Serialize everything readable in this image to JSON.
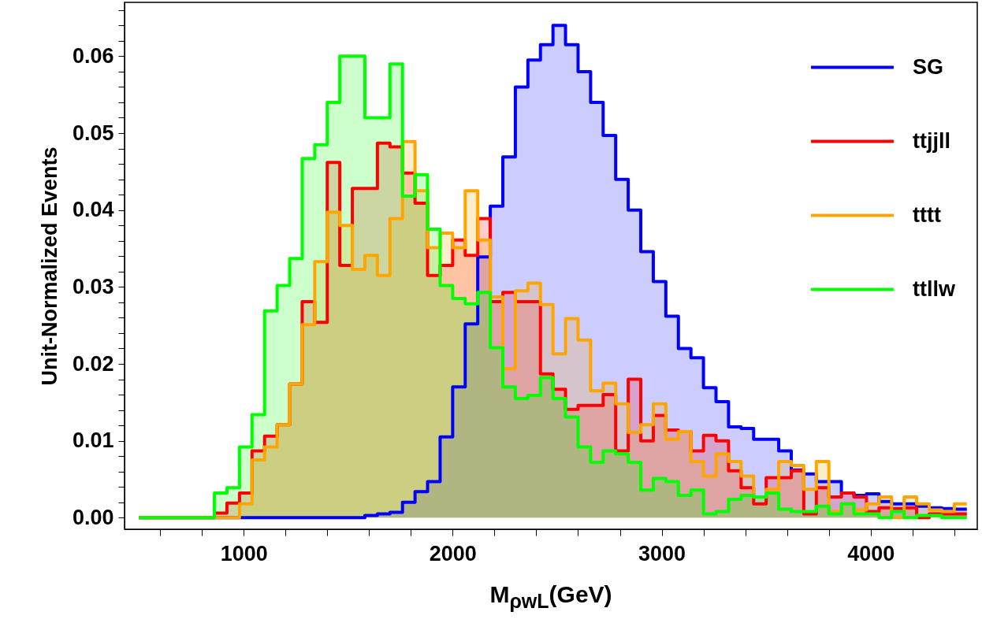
{
  "chart_data": {
    "type": "histogram",
    "xlabel": "M$_{ρwL}$(GeV)",
    "ylabel": "Unit-Normalized Events",
    "bins": [
      500,
      560,
      620,
      680,
      740,
      800,
      860,
      920,
      980,
      1040,
      1100,
      1160,
      1220,
      1280,
      1340,
      1400,
      1460,
      1520,
      1580,
      1640,
      1700,
      1760,
      1820,
      1880,
      1940,
      2000,
      2060,
      2120,
      2180,
      2240,
      2300,
      2360,
      2420,
      2480,
      2540,
      2600,
      2660,
      2720,
      2780,
      2840,
      2900,
      2960,
      3020,
      3080,
      3140,
      3200,
      3260,
      3320,
      3380,
      3440,
      3500,
      3560,
      3620,
      3680,
      3740,
      3800,
      3860,
      3920,
      3980,
      4040,
      4100,
      4160,
      4220,
      4280,
      4340,
      4400,
      4460
    ],
    "series": [
      {
        "name": "SG",
        "color": "#0000ff",
        "values": [
          0,
          0,
          0,
          0,
          0,
          0,
          0,
          0,
          0,
          0,
          0,
          0,
          0,
          0,
          0,
          0,
          0,
          0,
          0.0003,
          0.0005,
          0.0007,
          0.002,
          0.0034,
          0.0047,
          0.0105,
          0.017,
          0.0252,
          0.0339,
          0.0405,
          0.0469,
          0.056,
          0.0595,
          0.0615,
          0.064,
          0.0615,
          0.058,
          0.054,
          0.0497,
          0.044,
          0.04,
          0.0346,
          0.0307,
          0.0262,
          0.022,
          0.0208,
          0.0169,
          0.0151,
          0.0118,
          0.0116,
          0.0102,
          0.0102,
          0.0087,
          0.0062,
          0.0057,
          0.0047,
          0.0047,
          0.0032,
          0.0029,
          0.0031,
          0.0021,
          0.0018,
          0.0018,
          0.0015,
          0.0013,
          0.0012,
          0.0011
        ]
      },
      {
        "name": "ttjjll",
        "color": "#ff0000",
        "values": [
          0,
          0,
          0,
          0,
          0,
          0,
          0.0006,
          0.0019,
          0.0032,
          0.0087,
          0.0106,
          0.0121,
          0.0174,
          0.0281,
          0.0254,
          0.0462,
          0.0328,
          0.0428,
          0.0428,
          0.0487,
          0.0482,
          0.0448,
          0.0409,
          0.0315,
          0.0328,
          0.0361,
          0.0341,
          0.0389,
          0.0281,
          0.0293,
          0.0281,
          0.0281,
          0.0187,
          0.0167,
          0.0141,
          0.0146,
          0.0146,
          0.016,
          0.0087,
          0.018,
          0.01,
          0.0133,
          0.0114,
          0.0112,
          0.0087,
          0.0107,
          0.01,
          0.0061,
          0.0039,
          0.0018,
          0.0052,
          0.0052,
          0.0061,
          0.0005,
          0.0039,
          0.0027,
          0.0032,
          0.0027,
          0.0008,
          0.0013,
          0.0012,
          0.0013,
          0,
          0.0005,
          0.0005,
          0.0005
        ]
      },
      {
        "name": "tttt",
        "color": "#ffa500",
        "values": [
          0,
          0,
          0,
          0,
          0,
          0,
          0,
          0,
          0.0018,
          0.0075,
          0.0092,
          0.0121,
          0.0174,
          0.0251,
          0.0333,
          0.0397,
          0.038,
          0.0323,
          0.0341,
          0.0315,
          0.0389,
          0.0489,
          0.0425,
          0.0351,
          0.037,
          0.0351,
          0.0425,
          0.0361,
          0.0287,
          0.0194,
          0.0295,
          0.0305,
          0.0277,
          0.0213,
          0.0259,
          0.0231,
          0.0165,
          0.0175,
          0.0148,
          0.0111,
          0.0121,
          0.0148,
          0.0102,
          0.0112,
          0.0073,
          0.0054,
          0.0083,
          0.0073,
          0.0054,
          0.0027,
          0.0037,
          0.0073,
          0.0068,
          0.0037,
          0.0073,
          0.0008,
          0.0018,
          0.001,
          0.0018,
          0.0027,
          0,
          0.0027,
          0.0018,
          0.001,
          0.0008,
          0.0018
        ]
      },
      {
        "name": "ttllw",
        "color": "#00ff00",
        "values": [
          0,
          0,
          0,
          0,
          0,
          0,
          0.0032,
          0.0039,
          0.0092,
          0.0134,
          0.0269,
          0.0302,
          0.0337,
          0.0467,
          0.0485,
          0.054,
          0.06,
          0.06,
          0.052,
          0.052,
          0.059,
          0.0418,
          0.0446,
          0.0375,
          0.0302,
          0.0285,
          0.0278,
          0.0293,
          0.0221,
          0.017,
          0.0155,
          0.0159,
          0.0182,
          0.0155,
          0.0131,
          0.0092,
          0.0072,
          0.0087,
          0.0083,
          0.0072,
          0.0036,
          0.0051,
          0.0047,
          0.0029,
          0.0036,
          0.0005,
          0.0008,
          0.0024,
          0.0029,
          0.0027,
          0.0032,
          0.0011,
          0.0008,
          0.0008,
          0.0015,
          0.0005,
          0.0018,
          0.0005,
          0.0005,
          0,
          0.0008,
          0,
          0.0003,
          0.0003,
          0,
          0
        ]
      }
    ],
    "xlim": [
      430,
      4510
    ],
    "ylim": [
      -0.0015,
      0.067
    ],
    "xticks": [
      {
        "value": 600,
        "label": null
      },
      {
        "value": 800,
        "label": null
      },
      1000,
      {
        "value": 1200,
        "label": null
      },
      {
        "value": 1400,
        "label": null
      },
      {
        "value": 1600,
        "label": null
      },
      {
        "value": 1800,
        "label": null
      },
      2000,
      {
        "value": 2200,
        "label": null
      },
      {
        "value": 2400,
        "label": null
      },
      {
        "value": 2600,
        "label": null
      },
      {
        "value": 2800,
        "label": null
      },
      3000,
      {
        "value": 3200,
        "label": null
      },
      {
        "value": 3400,
        "label": null
      },
      {
        "value": 3600,
        "label": null
      },
      {
        "value": 3800,
        "label": null
      },
      4000,
      {
        "value": 4200,
        "label": null
      },
      {
        "value": 4400,
        "label": null
      }
    ],
    "yticks": [
      {
        "value": 0,
        "label": "0.00"
      },
      {
        "value": 0.002,
        "label": null
      },
      {
        "value": 0.004,
        "label": null
      },
      {
        "value": 0.006,
        "label": null
      },
      {
        "value": 0.008,
        "label": null
      },
      {
        "value": 0.01,
        "label": "0.01"
      },
      {
        "value": 0.012,
        "label": null
      },
      {
        "value": 0.014,
        "label": null
      },
      {
        "value": 0.016,
        "label": null
      },
      {
        "value": 0.018,
        "label": null
      },
      {
        "value": 0.02,
        "label": "0.02"
      },
      {
        "value": 0.022,
        "label": null
      },
      {
        "value": 0.024,
        "label": null
      },
      {
        "value": 0.026,
        "label": null
      },
      {
        "value": 0.028,
        "label": null
      },
      {
        "value": 0.03,
        "label": "0.03"
      },
      {
        "value": 0.032,
        "label": null
      },
      {
        "value": 0.034,
        "label": null
      },
      {
        "value": 0.036,
        "label": null
      },
      {
        "value": 0.038,
        "label": null
      },
      {
        "value": 0.04,
        "label": "0.04"
      },
      {
        "value": 0.042,
        "label": null
      },
      {
        "value": 0.044,
        "label": null
      },
      {
        "value": 0.046,
        "label": null
      },
      {
        "value": 0.048,
        "label": null
      },
      {
        "value": 0.05,
        "label": "0.05"
      },
      {
        "value": 0.052,
        "label": null
      },
      {
        "value": 0.054,
        "label": null
      },
      {
        "value": 0.056,
        "label": null
      },
      {
        "value": 0.058,
        "label": null
      },
      {
        "value": 0.06,
        "label": "0.06"
      },
      {
        "value": 0.062,
        "label": null
      },
      {
        "value": 0.064,
        "label": null
      },
      {
        "value": 0.066,
        "label": null
      }
    ],
    "legend": "top right"
  }
}
